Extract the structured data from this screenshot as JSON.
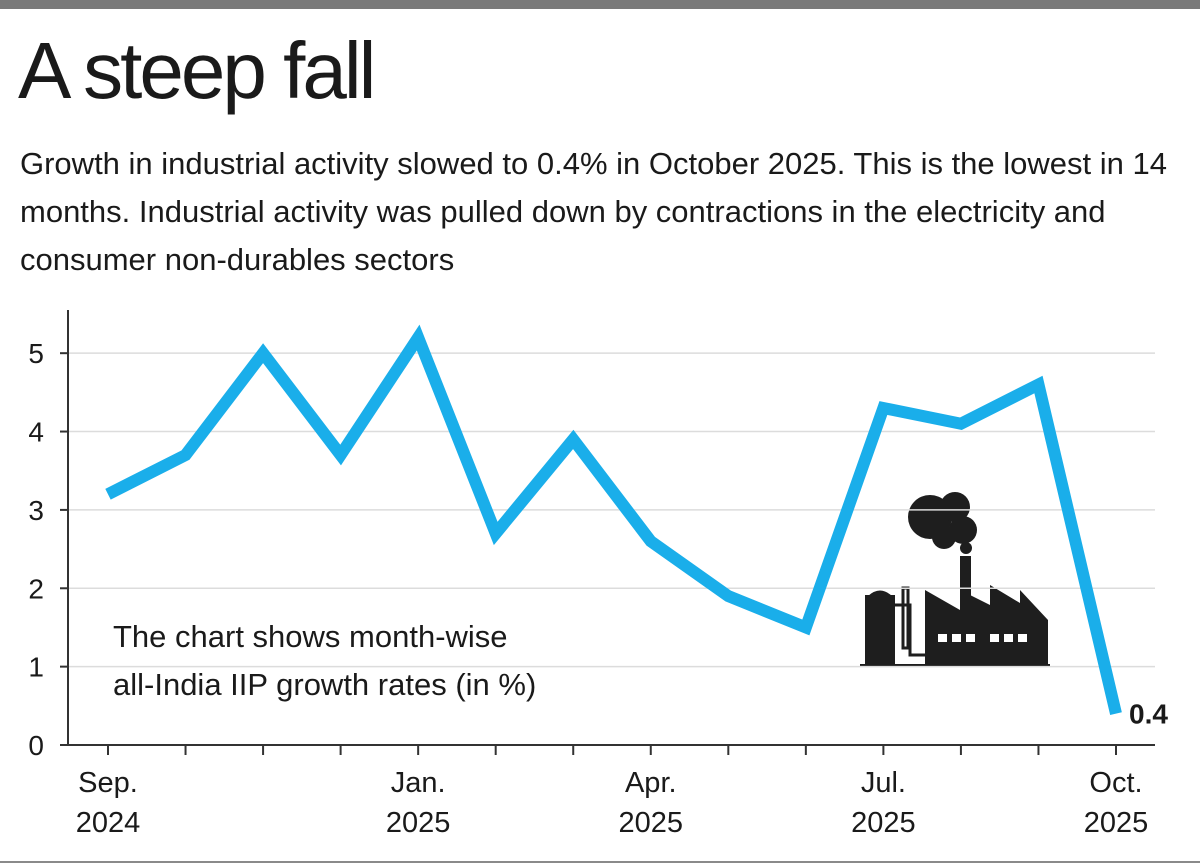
{
  "chart_data": {
    "type": "line",
    "title": "A steep fall",
    "subtitle": "Growth in industrial activity slowed to 0.4% in October 2025. This is the lowest in 14 months. Industrial activity was pulled down by contractions in the electricity and consumer non-durables sectors",
    "annotation": "The chart shows month-wise\nall-India IIP growth rates (in %)",
    "categories": [
      "Sep.\n2024",
      null,
      null,
      null,
      "Jan.\n2025",
      null,
      null,
      "Apr.\n2025",
      null,
      null,
      "Jul.\n2025",
      null,
      null,
      "Oct.\n2025"
    ],
    "values": [
      3.2,
      3.7,
      5.0,
      3.7,
      5.2,
      2.7,
      3.9,
      2.6,
      1.9,
      1.5,
      4.3,
      4.1,
      4.6,
      0.4
    ],
    "color": "#1aaeea",
    "ylim": [
      0,
      5.5
    ],
    "yticks": [
      0,
      1,
      2,
      3,
      4,
      5
    ],
    "grid": true
  }
}
